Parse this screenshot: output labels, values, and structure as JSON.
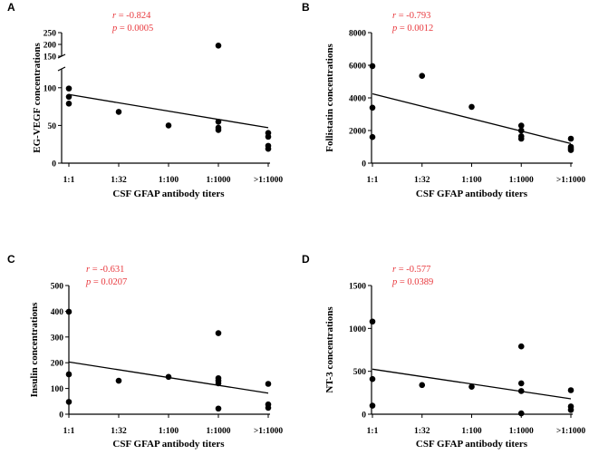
{
  "chart_data": [
    {
      "id": "A",
      "panel_label": "A",
      "type": "scatter",
      "title": "",
      "xlabel": "CSF GFAP antibody titers",
      "ylabel": "EG-VEGF concentrations",
      "categories": [
        "1:1",
        "1:32",
        "1:100",
        "1:1000",
        ">1:1000"
      ],
      "y_ticks_lower": [
        0,
        50,
        100
      ],
      "y_ticks_upper": [
        150,
        200,
        250
      ],
      "y_break": true,
      "ylim_lower": [
        0,
        125
      ],
      "ylim_upper": [
        150,
        250
      ],
      "points": [
        {
          "x": "1:1",
          "y": 99
        },
        {
          "x": "1:1",
          "y": 88
        },
        {
          "x": "1:1",
          "y": 79
        },
        {
          "x": "1:32",
          "y": 68
        },
        {
          "x": "1:100",
          "y": 50
        },
        {
          "x": "1:1000",
          "y": 195
        },
        {
          "x": "1:1000",
          "y": 55
        },
        {
          "x": "1:1000",
          "y": 47
        },
        {
          "x": "1:1000",
          "y": 44
        },
        {
          "x": ">1:1000",
          "y": 40
        },
        {
          "x": ">1:1000",
          "y": 35
        },
        {
          "x": ">1:1000",
          "y": 23
        },
        {
          "x": ">1:1000",
          "y": 19
        }
      ],
      "fit": {
        "y_start": 91,
        "y_end": 47
      },
      "r_label": "r",
      "r_text": " = -0.824",
      "p_label": "p",
      "p_text": " = 0.0005"
    },
    {
      "id": "B",
      "panel_label": "B",
      "type": "scatter",
      "title": "",
      "xlabel": "CSF GFAP antibody titers",
      "ylabel": "Follistatin concentrations",
      "categories": [
        "1:1",
        "1:32",
        "1:100",
        "1:1000",
        ">1:1000"
      ],
      "y_ticks": [
        0,
        2000,
        4000,
        6000,
        8000
      ],
      "ylim": [
        0,
        8000
      ],
      "points": [
        {
          "x": "1:1",
          "y": 5950
        },
        {
          "x": "1:1",
          "y": 3400
        },
        {
          "x": "1:1",
          "y": 1600
        },
        {
          "x": "1:32",
          "y": 5350
        },
        {
          "x": "1:100",
          "y": 3450
        },
        {
          "x": "1:1000",
          "y": 2300
        },
        {
          "x": "1:1000",
          "y": 2000
        },
        {
          "x": "1:1000",
          "y": 1650
        },
        {
          "x": "1:1000",
          "y": 1500
        },
        {
          "x": ">1:1000",
          "y": 1500
        },
        {
          "x": ">1:1000",
          "y": 1000
        },
        {
          "x": ">1:1000",
          "y": 900
        },
        {
          "x": ">1:1000",
          "y": 800
        }
      ],
      "fit": {
        "y_start": 4250,
        "y_end": 1200
      },
      "r_label": "r",
      "r_text": " = -0.793",
      "p_label": "p",
      "p_text": " = 0.0012"
    },
    {
      "id": "C",
      "panel_label": "C",
      "type": "scatter",
      "title": "",
      "xlabel": "CSF GFAP antibody titers",
      "ylabel": "Insulin concentrations",
      "categories": [
        "1:1",
        "1:32",
        "1:100",
        "1:1000",
        ">1:1000"
      ],
      "y_ticks": [
        0,
        100,
        200,
        300,
        400,
        500
      ],
      "ylim": [
        0,
        500
      ],
      "points": [
        {
          "x": "1:1",
          "y": 398
        },
        {
          "x": "1:1",
          "y": 155
        },
        {
          "x": "1:1",
          "y": 48
        },
        {
          "x": "1:32",
          "y": 130
        },
        {
          "x": "1:100",
          "y": 145
        },
        {
          "x": "1:1000",
          "y": 315
        },
        {
          "x": "1:1000",
          "y": 140
        },
        {
          "x": "1:1000",
          "y": 130
        },
        {
          "x": "1:1000",
          "y": 120
        },
        {
          "x": "1:1000",
          "y": 22
        },
        {
          "x": ">1:1000",
          "y": 118
        },
        {
          "x": ">1:1000",
          "y": 38
        },
        {
          "x": ">1:1000",
          "y": 25
        }
      ],
      "fit": {
        "y_start": 203,
        "y_end": 82
      },
      "r_label": "r",
      "r_text": " = -0.631",
      "p_label": "p",
      "p_text": " = 0.0207"
    },
    {
      "id": "D",
      "panel_label": "D",
      "type": "scatter",
      "title": "",
      "xlabel": "CSF GFAP antibody titers",
      "ylabel": "NT-3 concentrations",
      "categories": [
        "1:1",
        "1:32",
        "1:100",
        "1:1000",
        ">1:1000"
      ],
      "y_ticks": [
        0,
        500,
        1000,
        1500
      ],
      "ylim": [
        0,
        1500
      ],
      "points": [
        {
          "x": "1:1",
          "y": 1080
        },
        {
          "x": "1:1",
          "y": 410
        },
        {
          "x": "1:1",
          "y": 100
        },
        {
          "x": "1:32",
          "y": 340
        },
        {
          "x": "1:100",
          "y": 320
        },
        {
          "x": "1:1000",
          "y": 790
        },
        {
          "x": "1:1000",
          "y": 360
        },
        {
          "x": "1:1000",
          "y": 270
        },
        {
          "x": "1:1000",
          "y": 10
        },
        {
          "x": ">1:1000",
          "y": 280
        },
        {
          "x": ">1:1000",
          "y": 90
        },
        {
          "x": ">1:1000",
          "y": 50
        }
      ],
      "fit": {
        "y_start": 525,
        "y_end": 180
      },
      "r_label": "r",
      "r_text": " = -0.577",
      "p_label": "p",
      "p_text": " = 0.0389"
    }
  ]
}
